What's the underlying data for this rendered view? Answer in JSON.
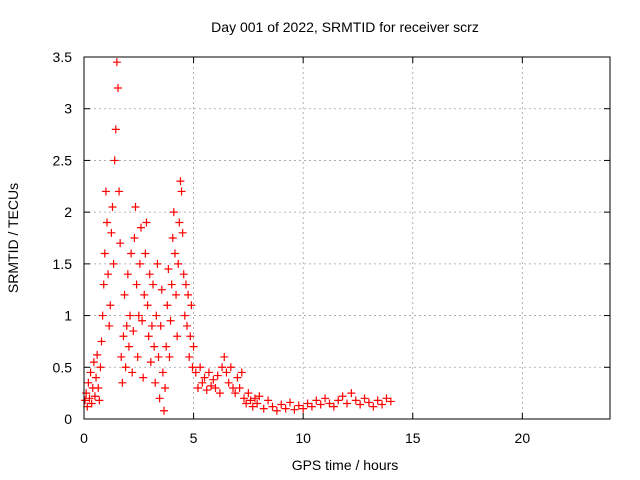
{
  "chart_data": {
    "type": "scatter",
    "title": "Day 001 of 2022, SRMTID for receiver scrz",
    "xlabel": "GPS time / hours",
    "ylabel": "SRMTID / TECUs",
    "xlim": [
      0,
      24
    ],
    "ylim": [
      0,
      3.5
    ],
    "xticks": [
      0,
      5,
      10,
      15,
      20
    ],
    "xtick_labels": [
      "0",
      "5",
      "10",
      "15",
      "20"
    ],
    "yticks": [
      0,
      0.5,
      1,
      1.5,
      2,
      2.5,
      3,
      3.5
    ],
    "ytick_labels": [
      "0",
      "0.5",
      "1",
      "1.5",
      "2",
      "2.5",
      "3",
      "3.5"
    ],
    "grid": true,
    "marker": "+",
    "marker_color": "#ff0000",
    "series": [
      {
        "name": "scrz",
        "points": [
          [
            0.05,
            0.18
          ],
          [
            0.1,
            0.25
          ],
          [
            0.15,
            0.12
          ],
          [
            0.2,
            0.35
          ],
          [
            0.25,
            0.2
          ],
          [
            0.3,
            0.45
          ],
          [
            0.35,
            0.15
          ],
          [
            0.4,
            0.3
          ],
          [
            0.45,
            0.55
          ],
          [
            0.5,
            0.22
          ],
          [
            0.55,
            0.4
          ],
          [
            0.6,
            0.62
          ],
          [
            0.65,
            0.3
          ],
          [
            0.7,
            0.18
          ],
          [
            0.75,
            0.5
          ],
          [
            0.8,
            0.75
          ],
          [
            0.85,
            1.0
          ],
          [
            0.9,
            1.3
          ],
          [
            0.95,
            1.6
          ],
          [
            1.0,
            2.2
          ],
          [
            1.05,
            1.9
          ],
          [
            1.1,
            1.4
          ],
          [
            1.15,
            0.9
          ],
          [
            1.2,
            1.1
          ],
          [
            1.25,
            1.8
          ],
          [
            1.3,
            2.05
          ],
          [
            1.35,
            1.5
          ],
          [
            1.4,
            2.5
          ],
          [
            1.45,
            2.8
          ],
          [
            1.5,
            3.45
          ],
          [
            1.55,
            3.2
          ],
          [
            1.6,
            2.2
          ],
          [
            1.65,
            1.7
          ],
          [
            1.7,
            0.6
          ],
          [
            1.75,
            0.35
          ],
          [
            1.8,
            0.8
          ],
          [
            1.85,
            1.2
          ],
          [
            1.9,
            0.5
          ],
          [
            1.95,
            0.9
          ],
          [
            2.0,
            1.4
          ],
          [
            2.05,
            0.7
          ],
          [
            2.1,
            1.0
          ],
          [
            2.15,
            1.6
          ],
          [
            2.2,
            0.45
          ],
          [
            2.25,
            0.85
          ],
          [
            2.3,
            1.75
          ],
          [
            2.35,
            2.05
          ],
          [
            2.4,
            1.3
          ],
          [
            2.45,
            0.6
          ],
          [
            2.5,
            1.0
          ],
          [
            2.55,
            1.5
          ],
          [
            2.6,
            1.85
          ],
          [
            2.65,
            0.95
          ],
          [
            2.7,
            0.4
          ],
          [
            2.75,
            1.2
          ],
          [
            2.8,
            1.6
          ],
          [
            2.85,
            1.9
          ],
          [
            2.9,
            1.1
          ],
          [
            2.95,
            0.8
          ],
          [
            3.0,
            1.4
          ],
          [
            3.05,
            0.55
          ],
          [
            3.1,
            0.9
          ],
          [
            3.15,
            1.3
          ],
          [
            3.2,
            0.7
          ],
          [
            3.25,
            0.35
          ],
          [
            3.3,
            1.0
          ],
          [
            3.35,
            1.5
          ],
          [
            3.4,
            0.6
          ],
          [
            3.45,
            0.2
          ],
          [
            3.5,
            0.9
          ],
          [
            3.55,
            1.25
          ],
          [
            3.6,
            0.45
          ],
          [
            3.65,
            0.08
          ],
          [
            3.7,
            0.3
          ],
          [
            3.75,
            0.7
          ],
          [
            3.8,
            1.1
          ],
          [
            3.85,
            1.45
          ],
          [
            3.9,
            0.6
          ],
          [
            3.95,
            0.95
          ],
          [
            4.0,
            1.3
          ],
          [
            4.05,
            1.75
          ],
          [
            4.1,
            2.0
          ],
          [
            4.15,
            1.6
          ],
          [
            4.2,
            1.2
          ],
          [
            4.25,
            0.8
          ],
          [
            4.3,
            1.5
          ],
          [
            4.35,
            1.9
          ],
          [
            4.4,
            2.3
          ],
          [
            4.45,
            2.2
          ],
          [
            4.5,
            1.8
          ],
          [
            4.55,
            1.4
          ],
          [
            4.6,
            1.0
          ],
          [
            4.65,
            1.3
          ],
          [
            4.7,
            0.9
          ],
          [
            4.75,
            1.2
          ],
          [
            4.8,
            0.6
          ],
          [
            4.85,
            0.8
          ],
          [
            4.9,
            1.1
          ],
          [
            4.95,
            0.5
          ],
          [
            5.0,
            0.7
          ],
          [
            5.1,
            0.45
          ],
          [
            5.2,
            0.3
          ],
          [
            5.3,
            0.5
          ],
          [
            5.4,
            0.35
          ],
          [
            5.5,
            0.4
          ],
          [
            5.6,
            0.28
          ],
          [
            5.7,
            0.45
          ],
          [
            5.8,
            0.32
          ],
          [
            5.9,
            0.38
          ],
          [
            6.0,
            0.3
          ],
          [
            6.1,
            0.42
          ],
          [
            6.2,
            0.25
          ],
          [
            6.3,
            0.5
          ],
          [
            6.4,
            0.6
          ],
          [
            6.5,
            0.45
          ],
          [
            6.6,
            0.35
          ],
          [
            6.7,
            0.5
          ],
          [
            6.8,
            0.3
          ],
          [
            6.9,
            0.25
          ],
          [
            7.0,
            0.4
          ],
          [
            7.1,
            0.3
          ],
          [
            7.2,
            0.45
          ],
          [
            7.3,
            0.2
          ],
          [
            7.4,
            0.15
          ],
          [
            7.5,
            0.25
          ],
          [
            7.6,
            0.18
          ],
          [
            7.7,
            0.12
          ],
          [
            7.8,
            0.2
          ],
          [
            7.9,
            0.15
          ],
          [
            8.0,
            0.22
          ],
          [
            8.2,
            0.1
          ],
          [
            8.4,
            0.18
          ],
          [
            8.6,
            0.12
          ],
          [
            8.8,
            0.08
          ],
          [
            9.0,
            0.14
          ],
          [
            9.2,
            0.1
          ],
          [
            9.4,
            0.16
          ],
          [
            9.6,
            0.09
          ],
          [
            9.8,
            0.13
          ],
          [
            10.0,
            0.1
          ],
          [
            10.2,
            0.15
          ],
          [
            10.4,
            0.12
          ],
          [
            10.6,
            0.18
          ],
          [
            10.8,
            0.14
          ],
          [
            11.0,
            0.2
          ],
          [
            11.2,
            0.15
          ],
          [
            11.4,
            0.12
          ],
          [
            11.6,
            0.18
          ],
          [
            11.8,
            0.22
          ],
          [
            12.0,
            0.15
          ],
          [
            12.2,
            0.25
          ],
          [
            12.4,
            0.18
          ],
          [
            12.6,
            0.14
          ],
          [
            12.8,
            0.2
          ],
          [
            13.0,
            0.16
          ],
          [
            13.2,
            0.12
          ],
          [
            13.4,
            0.18
          ],
          [
            13.6,
            0.14
          ],
          [
            13.8,
            0.2
          ],
          [
            14.0,
            0.17
          ]
        ]
      }
    ]
  }
}
